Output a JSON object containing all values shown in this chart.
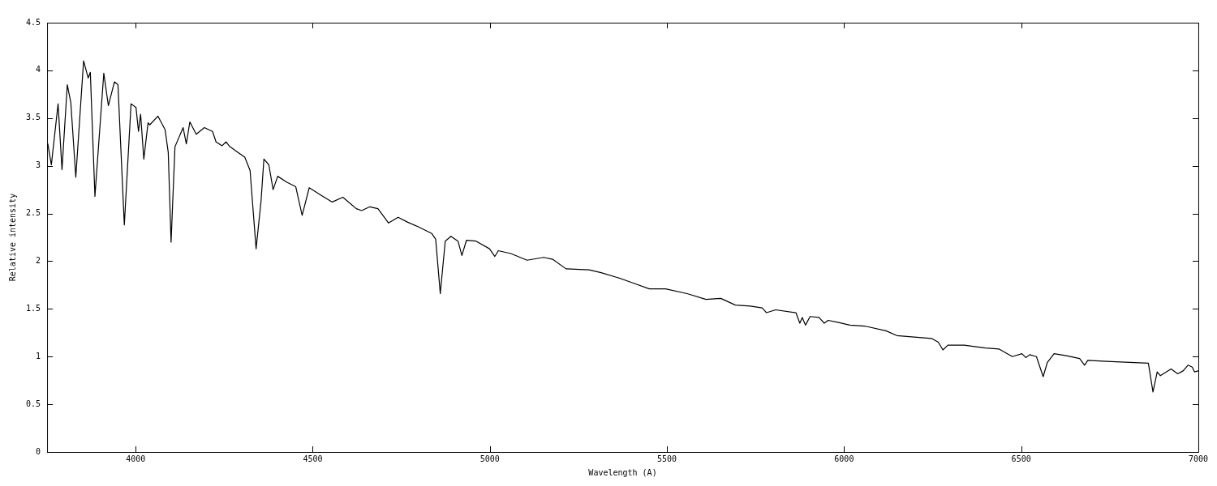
{
  "chart_data": {
    "type": "line",
    "xlabel": "Wavelength (A)",
    "ylabel": "Relative intensity",
    "xlim": [
      3750,
      7000
    ],
    "xticks": [
      4000,
      4500,
      5000,
      5500,
      6000,
      6500,
      7000
    ],
    "ylim": [
      0,
      4.5
    ],
    "yticks": [
      0,
      0.5,
      1,
      1.5,
      2,
      2.5,
      3,
      3.5,
      4,
      4.5
    ],
    "grid": false,
    "legend": false,
    "marker": "none",
    "line_style": "solid",
    "series": [
      {
        "color": "#000000",
        "x": [
          3750,
          3752,
          3762,
          3781,
          3792,
          3807,
          3817,
          3831,
          3853,
          3866,
          3872,
          3885,
          3910,
          3923,
          3940,
          3950,
          3968,
          3987,
          4001,
          4008,
          4014,
          4023,
          4035,
          4040,
          4063,
          4083,
          4092,
          4100,
          4111,
          4134,
          4143,
          4153,
          4171,
          4194,
          4217,
          4227,
          4244,
          4255,
          4266,
          4289,
          4308,
          4323,
          4340,
          4354,
          4362,
          4376,
          4388,
          4401,
          4426,
          4452,
          4470,
          4490,
          4524,
          4555,
          4585,
          4623,
          4638,
          4661,
          4684,
          4714,
          4741,
          4767,
          4798,
          4836,
          4847,
          4860,
          4874,
          4890,
          4910,
          4921,
          4934,
          4961,
          4999,
          5014,
          5024,
          5059,
          5105,
          5152,
          5177,
          5215,
          5280,
          5314,
          5359,
          5405,
          5450,
          5496,
          5557,
          5610,
          5652,
          5693,
          5735,
          5769,
          5781,
          5807,
          5864,
          5875,
          5882,
          5891,
          5904,
          5929,
          5944,
          5955,
          5982,
          6016,
          6058,
          6118,
          6149,
          6247,
          6266,
          6279,
          6293,
          6339,
          6399,
          6437,
          6475,
          6502,
          6513,
          6524,
          6543,
          6562,
          6574,
          6593,
          6627,
          6665,
          6679,
          6688,
          6741,
          6859,
          6872,
          6884,
          6893,
          6923,
          6942,
          6957,
          6971,
          6983,
          6989,
          7000
        ],
        "values": [
          3.2,
          3.23,
          3.01,
          3.65,
          2.96,
          3.85,
          3.66,
          2.88,
          4.1,
          3.92,
          3.98,
          2.68,
          3.97,
          3.63,
          3.88,
          3.85,
          2.38,
          3.65,
          3.61,
          3.36,
          3.54,
          3.07,
          3.45,
          3.43,
          3.52,
          3.38,
          3.14,
          2.2,
          3.2,
          3.4,
          3.23,
          3.46,
          3.33,
          3.4,
          3.36,
          3.25,
          3.21,
          3.25,
          3.2,
          3.14,
          3.09,
          2.95,
          2.13,
          2.63,
          3.07,
          3.01,
          2.75,
          2.89,
          2.83,
          2.78,
          2.48,
          2.77,
          2.69,
          2.62,
          2.67,
          2.55,
          2.53,
          2.57,
          2.55,
          2.4,
          2.46,
          2.41,
          2.36,
          2.29,
          2.23,
          1.66,
          2.21,
          2.26,
          2.21,
          2.06,
          2.22,
          2.21,
          2.13,
          2.05,
          2.11,
          2.08,
          2.01,
          2.04,
          2.02,
          1.92,
          1.91,
          1.88,
          1.83,
          1.77,
          1.71,
          1.71,
          1.66,
          1.6,
          1.61,
          1.54,
          1.53,
          1.51,
          1.46,
          1.49,
          1.46,
          1.35,
          1.41,
          1.33,
          1.42,
          1.41,
          1.35,
          1.38,
          1.36,
          1.33,
          1.32,
          1.27,
          1.22,
          1.19,
          1.15,
          1.07,
          1.12,
          1.12,
          1.09,
          1.08,
          1.0,
          1.03,
          0.99,
          1.02,
          1.0,
          0.79,
          0.94,
          1.03,
          1.01,
          0.98,
          0.91,
          0.96,
          0.95,
          0.93,
          0.63,
          0.84,
          0.8,
          0.87,
          0.82,
          0.85,
          0.91,
          0.89,
          0.84,
          0.85
        ]
      }
    ]
  }
}
